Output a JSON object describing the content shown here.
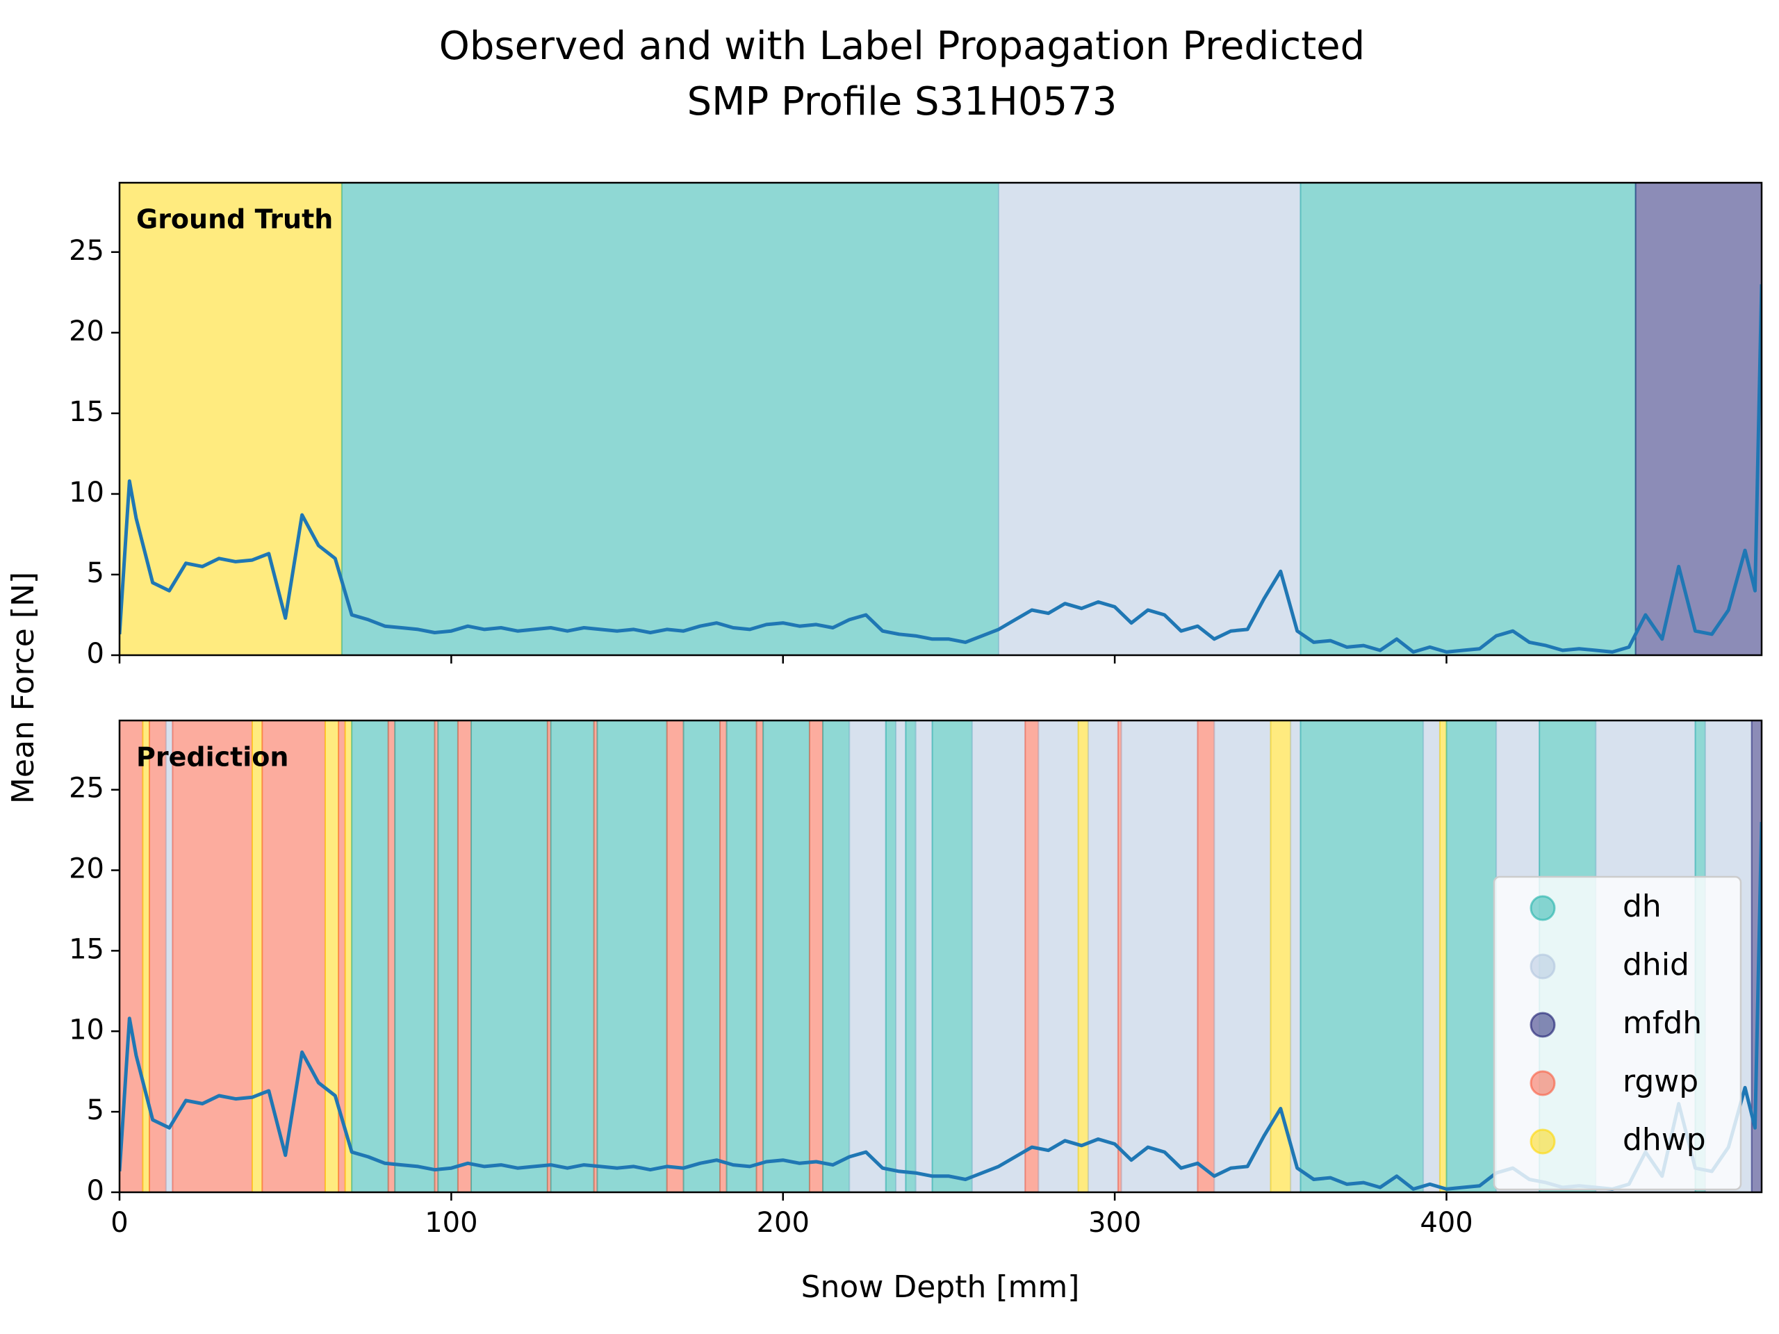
{
  "figure": {
    "title": [
      "Observed and with Label Propagation Predicted",
      "SMP Profile S31H0573"
    ],
    "xlabel": "Snow Depth [mm]",
    "ylabel": "Mean Force [N]"
  },
  "classes": [
    {
      "name": "dh",
      "color": "#20b2aa"
    },
    {
      "name": "dhid",
      "color": "#b0c4de"
    },
    {
      "name": "mfdh",
      "color": "#191970"
    },
    {
      "name": "rgwp",
      "color": "#fa5a3d"
    },
    {
      "name": "dhwp",
      "color": "#ffd700"
    }
  ],
  "chart_data": [
    {
      "type": "line",
      "annotation": "Ground Truth",
      "line_color": "#1f77b4",
      "xlim": [
        0,
        495
      ],
      "ylim": [
        0,
        29.3
      ],
      "xticks": [
        0,
        100,
        200,
        300,
        400
      ],
      "yticks": [
        0,
        5,
        10,
        15,
        20,
        25
      ],
      "spans": [
        {
          "label": "dhwp",
          "start": 0,
          "end": 67
        },
        {
          "label": "dh",
          "start": 67,
          "end": 265
        },
        {
          "label": "dhid",
          "start": 265,
          "end": 356
        },
        {
          "label": "dh",
          "start": 356,
          "end": 457
        },
        {
          "label": "mfdh",
          "start": 457,
          "end": 495
        }
      ],
      "x": [
        0,
        3,
        5,
        10,
        15,
        20,
        25,
        30,
        35,
        40,
        45,
        50,
        55,
        60,
        65,
        70,
        75,
        80,
        85,
        90,
        95,
        100,
        105,
        110,
        115,
        120,
        125,
        130,
        135,
        140,
        145,
        150,
        155,
        160,
        165,
        170,
        175,
        180,
        185,
        190,
        195,
        200,
        205,
        210,
        215,
        220,
        225,
        230,
        235,
        240,
        245,
        250,
        255,
        260,
        265,
        270,
        275,
        280,
        285,
        290,
        295,
        300,
        305,
        310,
        315,
        320,
        325,
        330,
        335,
        340,
        345,
        350,
        355,
        360,
        365,
        370,
        375,
        380,
        385,
        390,
        395,
        400,
        405,
        410,
        415,
        420,
        425,
        430,
        435,
        440,
        445,
        450,
        455,
        460,
        465,
        470,
        475,
        480,
        485,
        490,
        493,
        495
      ],
      "values": [
        1.3,
        10.8,
        8.5,
        4.5,
        4.0,
        5.7,
        5.5,
        6.0,
        5.8,
        5.9,
        6.3,
        2.3,
        8.7,
        6.8,
        6.0,
        2.5,
        2.2,
        1.8,
        1.7,
        1.6,
        1.4,
        1.5,
        1.8,
        1.6,
        1.7,
        1.5,
        1.6,
        1.7,
        1.5,
        1.7,
        1.6,
        1.5,
        1.6,
        1.4,
        1.6,
        1.5,
        1.8,
        2.0,
        1.7,
        1.6,
        1.9,
        2.0,
        1.8,
        1.9,
        1.7,
        2.2,
        2.5,
        1.5,
        1.3,
        1.2,
        1.0,
        1.0,
        0.8,
        1.2,
        1.6,
        2.2,
        2.8,
        2.6,
        3.2,
        2.9,
        3.3,
        3.0,
        2.0,
        2.8,
        2.5,
        1.5,
        1.8,
        1.0,
        1.5,
        1.6,
        3.5,
        5.2,
        1.5,
        0.8,
        0.9,
        0.5,
        0.6,
        0.3,
        1.0,
        0.2,
        0.5,
        0.2,
        0.3,
        0.4,
        1.2,
        1.5,
        0.8,
        0.6,
        0.3,
        0.4,
        0.3,
        0.2,
        0.5,
        2.5,
        1.0,
        5.5,
        1.5,
        1.3,
        2.8,
        6.5,
        4.0,
        23
      ]
    },
    {
      "type": "line",
      "annotation": "Prediction",
      "line_color": "#1f77b4",
      "legend": "lower right",
      "xlim": [
        0,
        495
      ],
      "ylim": [
        0,
        29.3
      ],
      "xticks": [
        0,
        100,
        200,
        300,
        400
      ],
      "yticks": [
        0,
        5,
        10,
        15,
        20,
        25
      ],
      "spans": [
        {
          "label": "rgwp",
          "start": 0,
          "end": 7
        },
        {
          "label": "dhwp",
          "start": 7,
          "end": 9
        },
        {
          "label": "rgwp",
          "start": 9,
          "end": 14
        },
        {
          "label": "dhid",
          "start": 14,
          "end": 16
        },
        {
          "label": "rgwp",
          "start": 16,
          "end": 40
        },
        {
          "label": "dhwp",
          "start": 40,
          "end": 43
        },
        {
          "label": "rgwp",
          "start": 43,
          "end": 62
        },
        {
          "label": "dhwp",
          "start": 62,
          "end": 66
        },
        {
          "label": "rgwp",
          "start": 66,
          "end": 68
        },
        {
          "label": "dhwp",
          "start": 68,
          "end": 70
        },
        {
          "label": "dh",
          "start": 70,
          "end": 81
        },
        {
          "label": "rgwp",
          "start": 81,
          "end": 83
        },
        {
          "label": "dh",
          "start": 83,
          "end": 95
        },
        {
          "label": "rgwp",
          "start": 95,
          "end": 96
        },
        {
          "label": "dh",
          "start": 96,
          "end": 102
        },
        {
          "label": "rgwp",
          "start": 102,
          "end": 106
        },
        {
          "label": "dh",
          "start": 106,
          "end": 129
        },
        {
          "label": "rgwp",
          "start": 129,
          "end": 130
        },
        {
          "label": "dh",
          "start": 130,
          "end": 143
        },
        {
          "label": "rgwp",
          "start": 143,
          "end": 144
        },
        {
          "label": "dh",
          "start": 144,
          "end": 165
        },
        {
          "label": "rgwp",
          "start": 165,
          "end": 170
        },
        {
          "label": "dh",
          "start": 170,
          "end": 181
        },
        {
          "label": "rgwp",
          "start": 181,
          "end": 183
        },
        {
          "label": "dh",
          "start": 183,
          "end": 192
        },
        {
          "label": "rgwp",
          "start": 192,
          "end": 194
        },
        {
          "label": "dh",
          "start": 194,
          "end": 208
        },
        {
          "label": "rgwp",
          "start": 208,
          "end": 212
        },
        {
          "label": "dh",
          "start": 212,
          "end": 220
        },
        {
          "label": "dhid",
          "start": 220,
          "end": 231
        },
        {
          "label": "dh",
          "start": 231,
          "end": 234
        },
        {
          "label": "dhid",
          "start": 234,
          "end": 237
        },
        {
          "label": "dh",
          "start": 237,
          "end": 240
        },
        {
          "label": "dhid",
          "start": 240,
          "end": 245
        },
        {
          "label": "dh",
          "start": 245,
          "end": 257
        },
        {
          "label": "dhid",
          "start": 257,
          "end": 273
        },
        {
          "label": "rgwp",
          "start": 273,
          "end": 277
        },
        {
          "label": "dhid",
          "start": 277,
          "end": 289
        },
        {
          "label": "dhwp",
          "start": 289,
          "end": 292
        },
        {
          "label": "dhid",
          "start": 292,
          "end": 301
        },
        {
          "label": "rgwp",
          "start": 301,
          "end": 302
        },
        {
          "label": "dhid",
          "start": 302,
          "end": 325
        },
        {
          "label": "rgwp",
          "start": 325,
          "end": 330
        },
        {
          "label": "dhid",
          "start": 330,
          "end": 347
        },
        {
          "label": "dhwp",
          "start": 347,
          "end": 353
        },
        {
          "label": "dhid",
          "start": 353,
          "end": 356
        },
        {
          "label": "dh",
          "start": 356,
          "end": 393
        },
        {
          "label": "dhid",
          "start": 393,
          "end": 398
        },
        {
          "label": "dhwp",
          "start": 398,
          "end": 400
        },
        {
          "label": "dh",
          "start": 400,
          "end": 415
        },
        {
          "label": "dhid",
          "start": 415,
          "end": 428
        },
        {
          "label": "dh",
          "start": 428,
          "end": 445
        },
        {
          "label": "dhid",
          "start": 445,
          "end": 475
        },
        {
          "label": "dh",
          "start": 475,
          "end": 478
        },
        {
          "label": "dhid",
          "start": 478,
          "end": 492
        },
        {
          "label": "mfdh",
          "start": 492,
          "end": 495
        }
      ],
      "x": [
        0,
        3,
        5,
        10,
        15,
        20,
        25,
        30,
        35,
        40,
        45,
        50,
        55,
        60,
        65,
        70,
        75,
        80,
        85,
        90,
        95,
        100,
        105,
        110,
        115,
        120,
        125,
        130,
        135,
        140,
        145,
        150,
        155,
        160,
        165,
        170,
        175,
        180,
        185,
        190,
        195,
        200,
        205,
        210,
        215,
        220,
        225,
        230,
        235,
        240,
        245,
        250,
        255,
        260,
        265,
        270,
        275,
        280,
        285,
        290,
        295,
        300,
        305,
        310,
        315,
        320,
        325,
        330,
        335,
        340,
        345,
        350,
        355,
        360,
        365,
        370,
        375,
        380,
        385,
        390,
        395,
        400,
        405,
        410,
        415,
        420,
        425,
        430,
        435,
        440,
        445,
        450,
        455,
        460,
        465,
        470,
        475,
        480,
        485,
        490,
        493,
        495
      ],
      "values": [
        1.3,
        10.8,
        8.5,
        4.5,
        4.0,
        5.7,
        5.5,
        6.0,
        5.8,
        5.9,
        6.3,
        2.3,
        8.7,
        6.8,
        6.0,
        2.5,
        2.2,
        1.8,
        1.7,
        1.6,
        1.4,
        1.5,
        1.8,
        1.6,
        1.7,
        1.5,
        1.6,
        1.7,
        1.5,
        1.7,
        1.6,
        1.5,
        1.6,
        1.4,
        1.6,
        1.5,
        1.8,
        2.0,
        1.7,
        1.6,
        1.9,
        2.0,
        1.8,
        1.9,
        1.7,
        2.2,
        2.5,
        1.5,
        1.3,
        1.2,
        1.0,
        1.0,
        0.8,
        1.2,
        1.6,
        2.2,
        2.8,
        2.6,
        3.2,
        2.9,
        3.3,
        3.0,
        2.0,
        2.8,
        2.5,
        1.5,
        1.8,
        1.0,
        1.5,
        1.6,
        3.5,
        5.2,
        1.5,
        0.8,
        0.9,
        0.5,
        0.6,
        0.3,
        1.0,
        0.2,
        0.5,
        0.2,
        0.3,
        0.4,
        1.2,
        1.5,
        0.8,
        0.6,
        0.3,
        0.4,
        0.3,
        0.2,
        0.5,
        2.5,
        1.0,
        5.5,
        1.5,
        1.3,
        2.8,
        6.5,
        4.0,
        23
      ]
    }
  ]
}
